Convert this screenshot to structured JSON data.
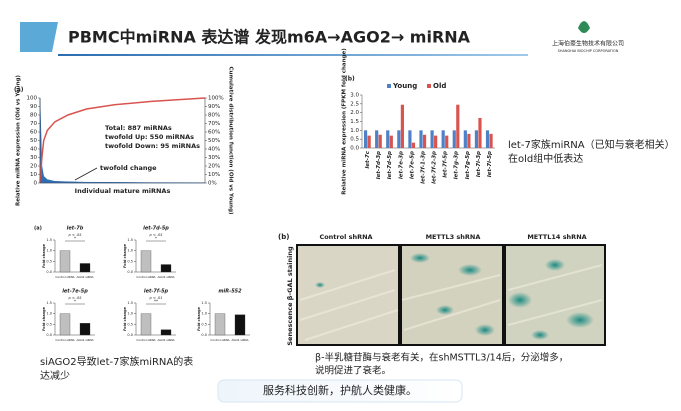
{
  "header": {
    "title": "PBMC中miRNA 表达谱  发现m6A→AGO2→ miRNA",
    "logo_cn": "上海伯豪生物技术有限公司",
    "logo_en": "SHANGHAI BIOCHIP CORPORATION"
  },
  "notes": {
    "right": [
      "let-7家族miRNA（已知与衰老相关）",
      "在old组中低表达"
    ],
    "bottom_left": [
      "siAGO2导致let-7家族miRNA的表",
      "达减少"
    ],
    "caption": [
      "β-半乳糖苷酶与衰老有关，在shMSTTL3/14后，分泌增多，",
      "说明促进了衰老。"
    ],
    "footer": "服务科技创新，护航人类健康。"
  },
  "images": {
    "label": "(b)",
    "ylabel": "Senescence β-GAL staining",
    "columns": [
      "Control shRNA",
      "METTL3 shRNA",
      "METTL14 shRNA"
    ]
  },
  "small_label": "(a)",
  "chart_data": [
    {
      "type": "line",
      "label": "(a)",
      "xlabel": "Individual mature miRNAs",
      "ylabel": "Relative miRNA expression (Old vs Young)",
      "y2label": "Cumulative distribution function (Old vs Young)",
      "annotations": [
        "Total: 887 miRNAs",
        "twofold Up: 550 miRNAs",
        "twofold Down: 95 miRNAs",
        "twofold change"
      ],
      "x": [
        0,
        10,
        20,
        40,
        80,
        150,
        250,
        400,
        600,
        887
      ],
      "xlim": [
        0,
        887
      ],
      "ylim": [
        0,
        100
      ],
      "yticks": [
        0,
        10,
        20,
        30,
        40,
        50,
        60,
        70,
        80,
        90,
        100
      ],
      "y2lim": [
        0,
        100
      ],
      "y2ticks": [
        {
          "value": 0,
          "label": "0%"
        },
        {
          "value": 10,
          "label": "10%"
        },
        {
          "value": 20,
          "label": "20%"
        },
        {
          "value": 30,
          "label": "30%"
        },
        {
          "value": 40,
          "label": "40%"
        },
        {
          "value": 50,
          "label": "50%"
        },
        {
          "value": 60,
          "label": "60%"
        },
        {
          "value": 70,
          "label": "70%"
        },
        {
          "value": 80,
          "label": "80%"
        },
        {
          "value": 90,
          "label": "90%"
        },
        {
          "value": 100,
          "label": "100%"
        }
      ],
      "series": [
        {
          "color": "#2f6db5",
          "area": true,
          "values": [
            100,
            20,
            8,
            4,
            2,
            1.5,
            1,
            0.8,
            0.5,
            0.3
          ]
        },
        {
          "color": "#d9534f",
          "axis": "y2",
          "values": [
            0,
            30,
            50,
            62,
            72,
            80,
            87,
            92,
            96,
            100
          ]
        }
      ]
    },
    {
      "type": "bar",
      "label": "(b)",
      "ylabel": "Relative miRNA expression (FPKM fold change)",
      "categories": [
        "let-7c",
        "let-7d-3p",
        "let-7d-5p",
        "let-7e-3p",
        "let-7e-5p",
        "let-7f-1-3p",
        "let-7f-2-3p",
        "let-7f-5p",
        "let-7g-3p",
        "let-7g-5p",
        "let-7i-3p",
        "let-7i-5p"
      ],
      "ylim": [
        0,
        3
      ],
      "yticks": [
        {
          "value": 0,
          "label": "0.0"
        },
        {
          "value": 0.5,
          "label": "0.5"
        },
        {
          "value": 1,
          "label": "1.0"
        },
        {
          "value": 1.5,
          "label": "1.5"
        },
        {
          "value": 2,
          "label": "2.0"
        },
        {
          "value": 2.5,
          "label": "2.5"
        },
        {
          "value": 3,
          "label": "3.0"
        }
      ],
      "legend": "top",
      "series": [
        {
          "name": "Young",
          "color": "#4f81c7",
          "values": [
            1,
            1,
            1,
            1,
            1,
            1,
            1,
            1,
            1,
            1,
            1,
            1
          ]
        },
        {
          "name": "Old",
          "color": "#d9534f",
          "values": [
            0.7,
            0.75,
            0.7,
            2.45,
            0.3,
            0.75,
            0.7,
            0.7,
            2.45,
            0.8,
            1.7,
            0.8
          ]
        }
      ]
    },
    {
      "type": "bar",
      "title": "let-7b",
      "ylabel": "Fold change",
      "categories": [
        "Control siRNA",
        "AGO2 siRNA"
      ],
      "values": [
        1,
        0.4
      ],
      "colors": [
        "#bfbfbf",
        "#111111"
      ],
      "ylim": [
        0,
        1.5
      ],
      "yticks": [
        {
          "value": 0,
          "label": "0.0"
        },
        {
          "value": 0.5,
          "label": "0.5"
        },
        {
          "value": 1,
          "label": "1.0"
        },
        {
          "value": 1.5,
          "label": "1.5"
        }
      ],
      "annotations": [
        "p < .05",
        "*"
      ]
    },
    {
      "type": "bar",
      "title": "let-7d-5p",
      "ylabel": "Fold change",
      "categories": [
        "Control siRNA",
        "AGO2 siRNA"
      ],
      "values": [
        1,
        0.35
      ],
      "colors": [
        "#bfbfbf",
        "#111111"
      ],
      "ylim": [
        0,
        1.5
      ],
      "yticks": [
        {
          "value": 0,
          "label": "0.0"
        },
        {
          "value": 0.5,
          "label": "0.5"
        },
        {
          "value": 1,
          "label": "1.0"
        },
        {
          "value": 1.5,
          "label": "1.5"
        }
      ],
      "annotations": [
        "p < .05",
        "*"
      ]
    },
    {
      "type": "bar",
      "title": "let-7e-5p",
      "ylabel": "Fold change",
      "categories": [
        "Control siRNA",
        "AGO2 siRNA"
      ],
      "values": [
        1,
        0.55
      ],
      "colors": [
        "#bfbfbf",
        "#111111"
      ],
      "ylim": [
        0,
        1.5
      ],
      "yticks": [
        {
          "value": 0,
          "label": "0.0"
        },
        {
          "value": 0.5,
          "label": "0.5"
        },
        {
          "value": 1,
          "label": "1.0"
        },
        {
          "value": 1.5,
          "label": "1.5"
        }
      ],
      "annotations": [
        "p < .05",
        "*"
      ]
    },
    {
      "type": "bar",
      "title": "let-7f-5p",
      "ylabel": "Fold change",
      "categories": [
        "Control siRNA",
        "AGO2 siRNA"
      ],
      "values": [
        1,
        0.25
      ],
      "colors": [
        "#bfbfbf",
        "#111111"
      ],
      "ylim": [
        0,
        1.5
      ],
      "yticks": [
        {
          "value": 0,
          "label": "0.0"
        },
        {
          "value": 0.5,
          "label": "0.5"
        },
        {
          "value": 1,
          "label": "1.0"
        },
        {
          "value": 1.5,
          "label": "1.5"
        }
      ],
      "annotations": [
        "p < .01",
        "**"
      ]
    },
    {
      "type": "bar",
      "title": "miR-552",
      "ylabel": "Fold change",
      "categories": [
        "Control siRNA",
        "AGO2 siRNA"
      ],
      "values": [
        1,
        0.95
      ],
      "colors": [
        "#bfbfbf",
        "#111111"
      ],
      "ylim": [
        0,
        1.5
      ],
      "yticks": [
        {
          "value": 0,
          "label": "0.0"
        },
        {
          "value": 0.5,
          "label": "0.5"
        },
        {
          "value": 1,
          "label": "1.0"
        },
        {
          "value": 1.5,
          "label": "1.5"
        }
      ]
    }
  ]
}
